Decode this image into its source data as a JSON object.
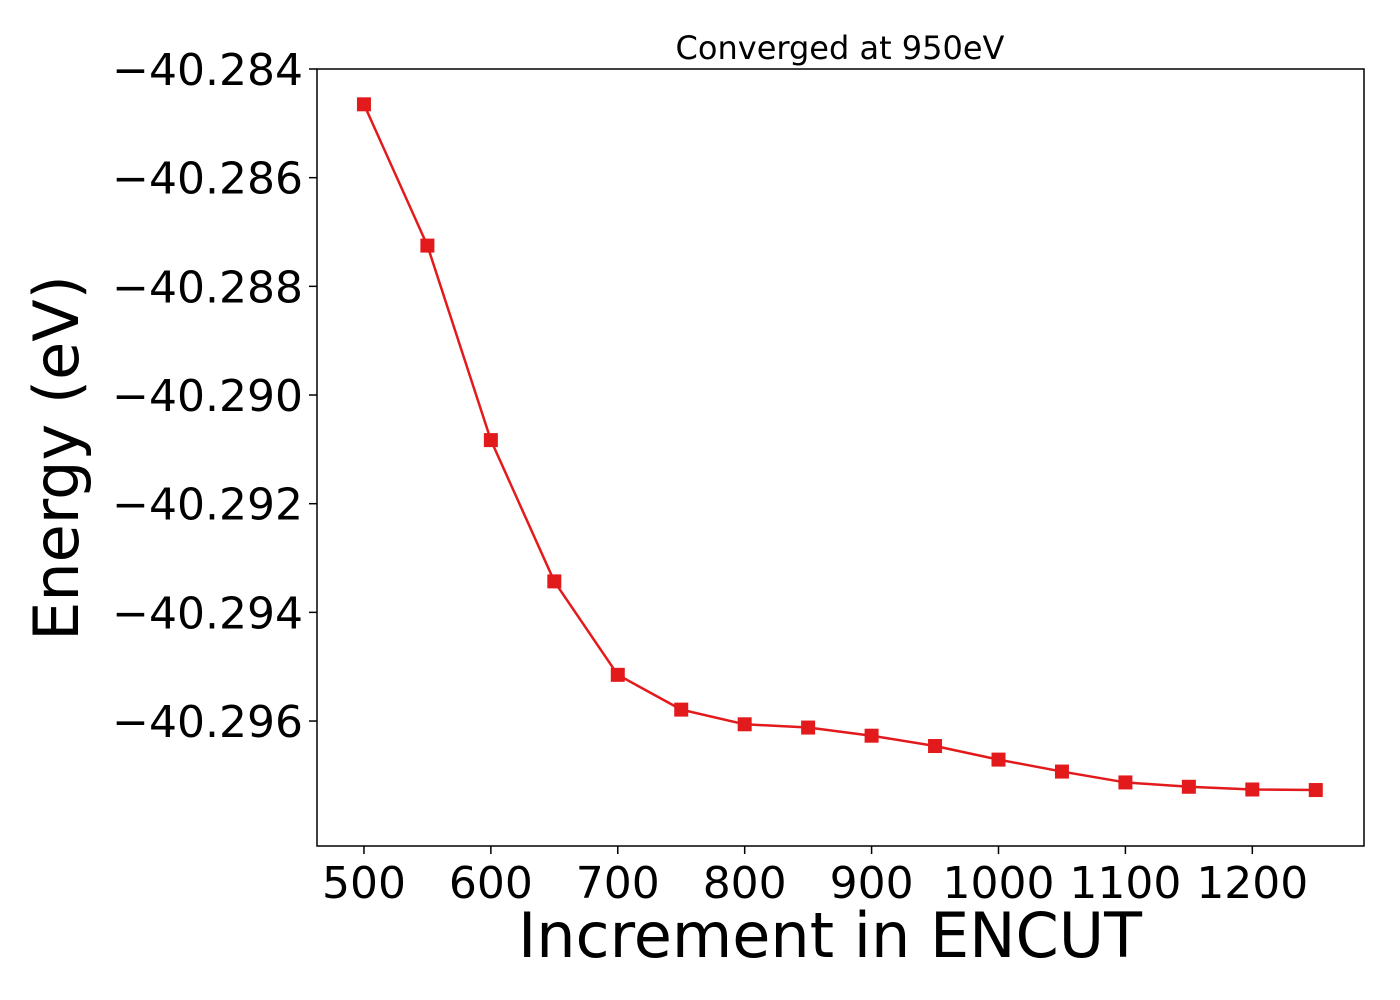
{
  "chart_data": {
    "type": "line",
    "title": "Converged at 950eV",
    "xlabel": "Increment in ENCUT",
    "ylabel": "Energy (eV)",
    "xlim": [
      463,
      1288
    ],
    "ylim": [
      -40.2983,
      -40.284
    ],
    "x_ticks": [
      500,
      600,
      700,
      800,
      900,
      1000,
      1100,
      1200
    ],
    "x_tick_labels": [
      "500",
      "600",
      "700",
      "800",
      "900",
      "1000",
      "1100",
      "1200"
    ],
    "y_ticks": [
      -40.284,
      -40.286,
      -40.288,
      -40.29,
      -40.292,
      -40.294,
      -40.296
    ],
    "y_tick_labels": [
      "−40.284",
      "−40.286",
      "−40.288",
      "−40.290",
      "−40.292",
      "−40.294",
      "−40.296"
    ],
    "grid": false,
    "legend": "none",
    "series": [
      {
        "color": "#e31a1c",
        "marker": "square",
        "x": [
          500,
          550,
          600,
          650,
          700,
          750,
          800,
          850,
          900,
          950,
          1000,
          1050,
          1100,
          1150,
          1200,
          1250
        ],
        "y": [
          -40.28465,
          -40.28725,
          -40.29083,
          -40.29343,
          -40.29515,
          -40.29579,
          -40.29606,
          -40.29612,
          -40.29627,
          -40.29646,
          -40.29671,
          -40.29693,
          -40.29713,
          -40.29721,
          -40.29726,
          -40.29727
        ]
      }
    ]
  }
}
